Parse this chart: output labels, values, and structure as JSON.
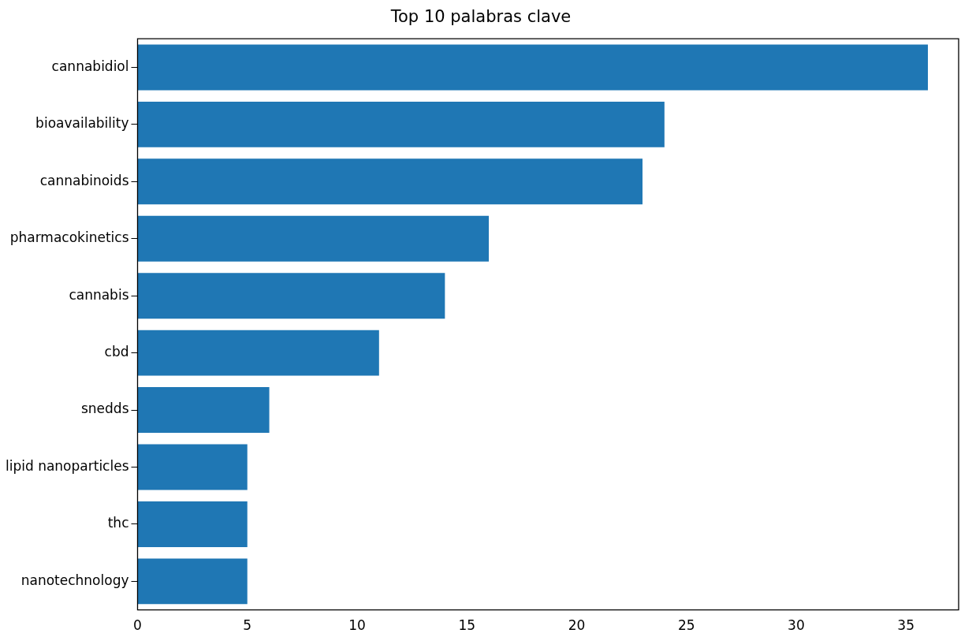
{
  "chart_data": {
    "type": "bar",
    "orientation": "horizontal",
    "title": "Top 10 palabras clave",
    "categories": [
      "cannabidiol",
      "bioavailability",
      "cannabinoids",
      "pharmacokinetics",
      "cannabis",
      "cbd",
      "snedds",
      "lipid nanoparticles",
      "thc",
      "nanotechnology"
    ],
    "values": [
      36,
      24,
      23,
      16,
      14,
      11,
      6,
      5,
      5,
      5
    ],
    "color": "#1f77b4",
    "xlim": [
      0,
      37.4
    ],
    "xticks": [
      0,
      5,
      10,
      15,
      20,
      25,
      30,
      35
    ],
    "grid": false
  }
}
